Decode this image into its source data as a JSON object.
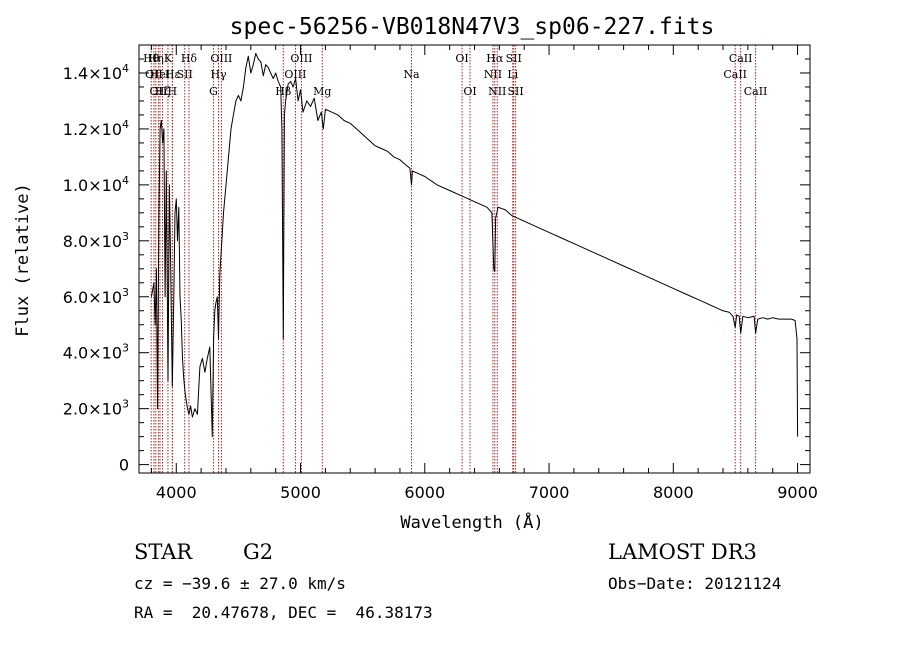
{
  "chart_data": {
    "type": "line",
    "title": "spec-56256-VB018N47V3_sp06-227.fits",
    "xlabel": "Wavelength (Å)",
    "ylabel": "Flux (relative)",
    "xlim": [
      3700,
      9100
    ],
    "ylim": [
      -300,
      15000
    ],
    "x_ticks": [
      {
        "value": 4000,
        "label": "4000"
      },
      {
        "value": 5000,
        "label": "5000"
      },
      {
        "value": 6000,
        "label": "6000"
      },
      {
        "value": 7000,
        "label": "7000"
      },
      {
        "value": 8000,
        "label": "8000"
      },
      {
        "value": 9000,
        "label": "9000"
      }
    ],
    "y_ticks": [
      {
        "value": 0,
        "mant": "0",
        "exp": ""
      },
      {
        "value": 2000,
        "mant": "2.0×10",
        "exp": "3"
      },
      {
        "value": 4000,
        "mant": "4.0×10",
        "exp": "3"
      },
      {
        "value": 6000,
        "mant": "6.0×10",
        "exp": "3"
      },
      {
        "value": 8000,
        "mant": "8.0×10",
        "exp": "3"
      },
      {
        "value": 10000,
        "mant": "1.0×10",
        "exp": "4"
      },
      {
        "value": 12000,
        "mant": "1.2×10",
        "exp": "4"
      },
      {
        "value": 14000,
        "mant": "1.4×10",
        "exp": "4"
      }
    ],
    "series": [
      {
        "name": "spectrum",
        "x": [
          3800,
          3820,
          3830,
          3840,
          3850,
          3860,
          3870,
          3880,
          3890,
          3900,
          3910,
          3920,
          3933,
          3945,
          3955,
          3968,
          3980,
          3990,
          4000,
          4010,
          4020,
          4030,
          4040,
          4050,
          4060,
          4070,
          4080,
          4090,
          4102,
          4115,
          4130,
          4150,
          4170,
          4190,
          4210,
          4230,
          4250,
          4270,
          4290,
          4300,
          4310,
          4320,
          4330,
          4340,
          4350,
          4360,
          4380,
          4400,
          4420,
          4440,
          4460,
          4480,
          4500,
          4520,
          4540,
          4560,
          4580,
          4600,
          4620,
          4640,
          4660,
          4680,
          4700,
          4720,
          4740,
          4760,
          4780,
          4800,
          4820,
          4840,
          4850,
          4861,
          4870,
          4880,
          4900,
          4920,
          4940,
          4960,
          4980,
          5000,
          5020,
          5050,
          5080,
          5110,
          5140,
          5167,
          5183,
          5200,
          5250,
          5300,
          5350,
          5400,
          5450,
          5500,
          5550,
          5600,
          5650,
          5700,
          5750,
          5800,
          5850,
          5880,
          5893,
          5900,
          5950,
          6000,
          6100,
          6200,
          6300,
          6400,
          6500,
          6540,
          6555,
          6563,
          6570,
          6590,
          6650,
          6700,
          6800,
          6900,
          7000,
          7100,
          7200,
          7300,
          7400,
          7500,
          7600,
          7700,
          7800,
          7900,
          8000,
          8100,
          8200,
          8300,
          8400,
          8450,
          8480,
          8498,
          8510,
          8530,
          8542,
          8560,
          8600,
          8650,
          8662,
          8680,
          8720,
          8760,
          8800,
          8850,
          8900,
          8950,
          8980,
          8995,
          9000
        ],
        "y": [
          6000,
          6500,
          5000,
          7000,
          2000,
          9000,
          12000,
          12300,
          11500,
          12000,
          6000,
          10500,
          3000,
          10000,
          7000,
          2800,
          6000,
          9000,
          9500,
          8000,
          9200,
          6000,
          5200,
          3800,
          3100,
          2600,
          2300,
          2000,
          1800,
          2100,
          1700,
          2000,
          1800,
          3500,
          3800,
          3300,
          3800,
          4200,
          1000,
          4500,
          5500,
          5800,
          6000,
          4500,
          6800,
          7500,
          9000,
          10000,
          11000,
          12000,
          12500,
          13000,
          13200,
          13000,
          13500,
          14200,
          14600,
          14000,
          14300,
          14700,
          14500,
          14400,
          13900,
          14300,
          14200,
          14000,
          13800,
          14000,
          13700,
          13500,
          12000,
          4500,
          12500,
          13000,
          13600,
          13700,
          13500,
          13800,
          13000,
          13400,
          12600,
          13000,
          12800,
          13100,
          12300,
          12600,
          12000,
          12700,
          12600,
          12500,
          12300,
          12200,
          12000,
          11800,
          11600,
          11400,
          11300,
          11200,
          11000,
          10900,
          10700,
          10600,
          10000,
          10500,
          10400,
          10300,
          10000,
          9800,
          9600,
          9400,
          9200,
          9000,
          7000,
          6900,
          8800,
          9200,
          9100,
          8900,
          8700,
          8500,
          8300,
          8100,
          7900,
          7700,
          7500,
          7300,
          7100,
          6900,
          6700,
          6500,
          6300,
          6100,
          5900,
          5700,
          5500,
          5450,
          5300,
          4900,
          5350,
          5300,
          4700,
          5300,
          5250,
          5300,
          4700,
          5200,
          5250,
          5200,
          5250,
          5200,
          5200,
          5200,
          5150,
          4500,
          1000
        ]
      }
    ],
    "lines": [
      {
        "wl": 3798,
        "label": "Hθ",
        "row": 1
      },
      {
        "wl": 3820,
        "label": "OII",
        "row": 2
      },
      {
        "wl": 3835,
        "label": "Hη",
        "row": 1
      },
      {
        "wl": 3856,
        "label": "OII",
        "row": 3
      },
      {
        "wl": 3869,
        "label": "HeI",
        "row": 2
      },
      {
        "wl": 3889,
        "label": "Hζ",
        "row": 3
      },
      {
        "wl": 3933,
        "label": "K",
        "row": 1
      },
      {
        "wl": 3968,
        "label": "H",
        "row": 3
      },
      {
        "wl": 3970,
        "label": "Hε",
        "row": 2
      },
      {
        "wl": 4068,
        "label": "SII",
        "row": 2
      },
      {
        "wl": 4102,
        "label": "Hδ",
        "row": 1
      },
      {
        "wl": 4300,
        "label": "G",
        "row": 3
      },
      {
        "wl": 4340,
        "label": "Hγ",
        "row": 2
      },
      {
        "wl": 4363,
        "label": "OIII",
        "row": 1
      },
      {
        "wl": 4861,
        "label": "Hβ",
        "row": 3
      },
      {
        "wl": 4959,
        "label": "OIII",
        "row": 2
      },
      {
        "wl": 5007,
        "label": "OIII",
        "row": 1
      },
      {
        "wl": 5175,
        "label": "Mg",
        "row": 3
      },
      {
        "wl": 5893,
        "label": "Na",
        "row": 2
      },
      {
        "wl": 6300,
        "label": "OI",
        "row": 1
      },
      {
        "wl": 6364,
        "label": "OI",
        "row": 3
      },
      {
        "wl": 6548,
        "label": "NII",
        "row": 2
      },
      {
        "wl": 6563,
        "label": "Hα",
        "row": 1
      },
      {
        "wl": 6583,
        "label": "NII",
        "row": 3
      },
      {
        "wl": 6708,
        "label": "Li",
        "row": 2
      },
      {
        "wl": 6716,
        "label": "SII",
        "row": 1
      },
      {
        "wl": 6731,
        "label": "SII",
        "row": 3
      },
      {
        "wl": 8498,
        "label": "CaII",
        "row": 2
      },
      {
        "wl": 8542,
        "label": "CaII",
        "row": 1
      },
      {
        "wl": 8662,
        "label": "CaII",
        "row": 3
      }
    ]
  },
  "info": {
    "object_class": "STAR",
    "subclass": "G2",
    "survey": "LAMOST DR3",
    "redshift": "cz = −39.6 ± 27.0 km/s",
    "obs_date": "Obs−Date: 20121124",
    "coords": "RA =  20.47678, DEC =  46.38173"
  },
  "colors": {
    "line_markers": "#b22222",
    "spectrum": "#000000",
    "axes": "#000000"
  }
}
